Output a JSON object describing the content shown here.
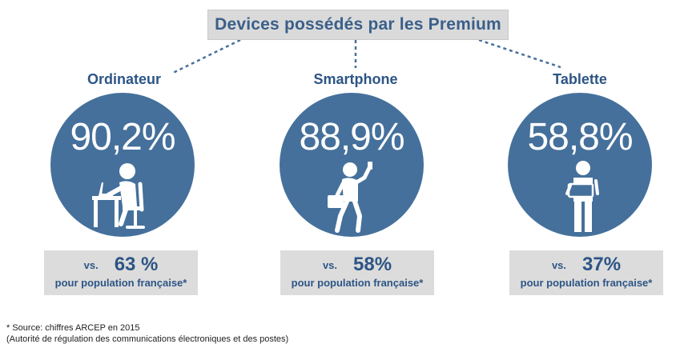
{
  "title": "Devices possédés par les Premium",
  "devices": [
    {
      "label": "Ordinateur",
      "percent": "90,2%",
      "icon": "person-at-computer-icon",
      "vs": "vs.",
      "comparison": "63 %",
      "population": "pour population française*"
    },
    {
      "label": "Smartphone",
      "percent": "88,9%",
      "icon": "person-walking-with-phone-icon",
      "vs": "vs.",
      "comparison": "58%",
      "population": "pour population française*"
    },
    {
      "label": "Tablette",
      "percent": "58,8%",
      "icon": "person-holding-tablet-icon",
      "vs": "vs.",
      "comparison": "37%",
      "population": "pour population française*"
    }
  ],
  "footnote": {
    "line1": "* Source: chiffres ARCEP en 2015",
    "line2": "(Autorité de régulation des communications électroniques et des postes)"
  },
  "colors": {
    "circle": "#45709b",
    "text_blue": "#2d5585",
    "title_bg": "#dadada",
    "box_bg": "#dcdcdc"
  }
}
